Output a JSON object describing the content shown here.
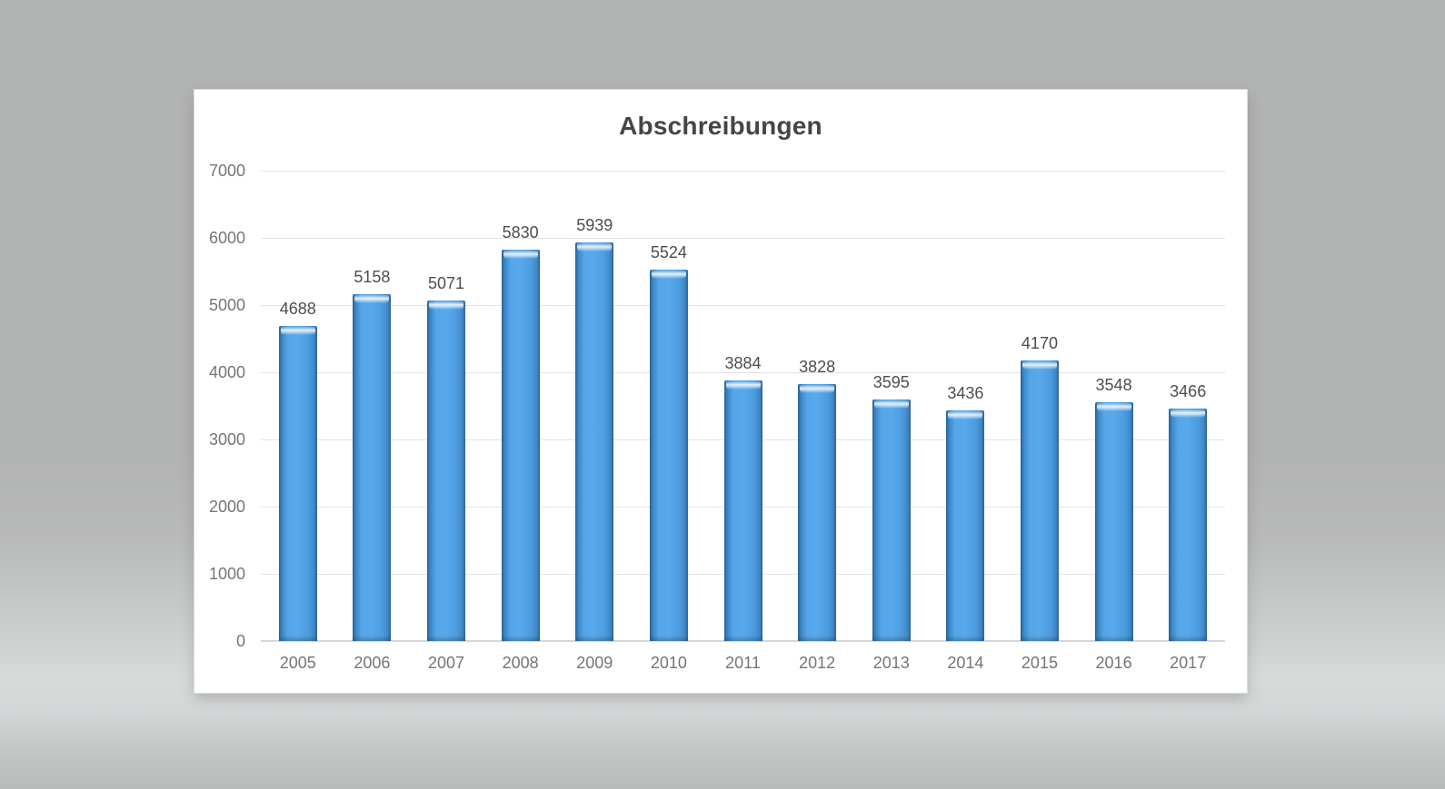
{
  "chart_data": {
    "type": "bar",
    "title": "Abschreibungen",
    "categories": [
      "2005",
      "2006",
      "2007",
      "2008",
      "2009",
      "2010",
      "2011",
      "2012",
      "2013",
      "2014",
      "2015",
      "2016",
      "2017"
    ],
    "values": [
      4688,
      5158,
      5071,
      5830,
      5939,
      5524,
      3884,
      3828,
      3595,
      3436,
      4170,
      3548,
      3466
    ],
    "data_labels_shown": true,
    "xlabel": "",
    "ylabel": "",
    "ylim": [
      0,
      7000
    ],
    "yticks": [
      0,
      1000,
      2000,
      3000,
      4000,
      5000,
      6000,
      7000
    ],
    "grid": true,
    "legend_position": "none",
    "colors": {
      "bar_fill": "#4D9FE4",
      "bar_edge_dark": "#2B6DA4",
      "bar_gloss_highlight": "#A7DCF9",
      "gridline": "#e3e3e3",
      "axis_line": "#d6d6d6",
      "axis_label_text": "#757575",
      "data_label_text": "#4d4d4d",
      "title_text": "#454545",
      "panel_background": "#ffffff",
      "page_background": "#b3b4b4"
    }
  }
}
